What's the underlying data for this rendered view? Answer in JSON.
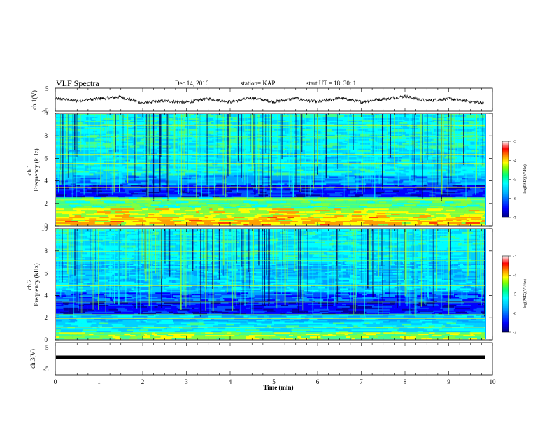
{
  "header": {
    "title": "VLF Spectra",
    "date": "Dec.14, 2016",
    "station": "station= KAP",
    "start": "start  UT =  18: 30: 1"
  },
  "chart_data": [
    {
      "type": "line",
      "name": "ch1-waveform",
      "ylabel": "ch.1(V)",
      "ylim": [
        -5,
        5
      ],
      "yticks": [
        "5",
        "-5"
      ],
      "xlim": [
        0,
        10
      ],
      "description_points_min_V": [
        [
          0,
          0.5
        ],
        [
          0.5,
          -0.5
        ],
        [
          1,
          0.5
        ],
        [
          1.5,
          1.2
        ],
        [
          2,
          -1.5
        ],
        [
          2.5,
          -0.5
        ],
        [
          3,
          -1.2
        ],
        [
          3.5,
          0.5
        ],
        [
          4,
          -1
        ],
        [
          4.5,
          0.8
        ],
        [
          5,
          -1
        ],
        [
          5.5,
          0.5
        ],
        [
          6,
          -1
        ],
        [
          6.5,
          0.8
        ],
        [
          7,
          -1
        ],
        [
          7.5,
          0.3
        ],
        [
          8,
          1.5
        ],
        [
          8.5,
          -0.5
        ],
        [
          9,
          0.5
        ],
        [
          9.5,
          -0.8
        ],
        [
          9.8,
          -1.5
        ]
      ]
    },
    {
      "type": "heatmap",
      "name": "ch1-spectrogram",
      "ylabel_top": "ch.1",
      "ylabel": "Frequency (kHz)",
      "ylim": [
        0,
        10
      ],
      "yticks": [
        "0",
        "2",
        "4",
        "6",
        "8",
        "10"
      ],
      "xlim": [
        0,
        10
      ],
      "colorbar": {
        "label": "log(PSD)(V²/Hz)",
        "range": [
          -7,
          -3
        ],
        "ticks": [
          "-3",
          "-4",
          "-5",
          "-6",
          "-7"
        ]
      }
    },
    {
      "type": "heatmap",
      "name": "ch2-spectrogram",
      "ylabel_top": "ch.2",
      "ylabel": "Frequency (kHz)",
      "ylim": [
        0,
        10
      ],
      "yticks": [
        "0",
        "2",
        "4",
        "6",
        "8",
        "10"
      ],
      "xlim": [
        0,
        10
      ],
      "colorbar": {
        "label": "log(PSD)(V²/Hz)",
        "range": [
          -7,
          -3
        ],
        "ticks": [
          "-3",
          "-4",
          "-5",
          "-6",
          "-7"
        ]
      }
    },
    {
      "type": "line",
      "name": "ch3-waveform",
      "ylabel": "ch.3(V)",
      "ylim": [
        -5,
        5
      ],
      "yticks": [
        "5",
        "-5"
      ],
      "xlim": [
        0,
        10
      ],
      "level_V": 0,
      "xlabel": "Time (min)",
      "xticks": [
        "0",
        "1",
        "2",
        "3",
        "4",
        "5",
        "6",
        "7",
        "8",
        "9",
        "10"
      ]
    }
  ],
  "colors": {
    "spectrum": [
      "#000080",
      "#0000ff",
      "#00a0ff",
      "#00ffff",
      "#80ff80",
      "#ffff00",
      "#ff8000",
      "#ff0000",
      "#ffffff"
    ]
  }
}
